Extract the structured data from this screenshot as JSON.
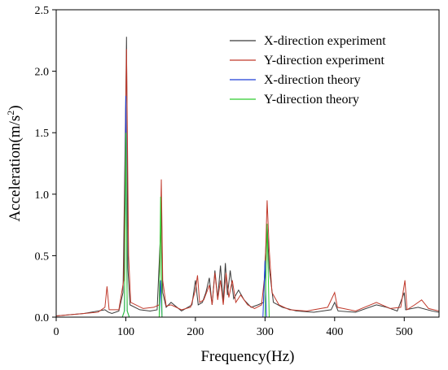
{
  "chart_data": {
    "type": "line",
    "title": "",
    "xlabel": "Frequency(Hz)",
    "ylabel_main": "Acceleration(m/s",
    "ylabel_sup": "2",
    "ylabel_close": ")",
    "xlim": [
      0,
      550
    ],
    "ylim": [
      0,
      2.5
    ],
    "xticks": [
      0,
      100,
      200,
      300,
      400,
      500
    ],
    "yticks": [
      0.0,
      0.5,
      1.0,
      1.5,
      2.0,
      2.5
    ],
    "xtick_labels": [
      "0",
      "100",
      "200",
      "300",
      "400",
      "500"
    ],
    "ytick_labels": [
      "0.0",
      "0.5",
      "1.0",
      "1.5",
      "2.0",
      "2.5"
    ],
    "grid": false,
    "legend_position": "top-right",
    "series": [
      {
        "name": "X-direction experiment",
        "color": "#3a3a3a",
        "points": [
          [
            0,
            0.01
          ],
          [
            20,
            0.02
          ],
          [
            40,
            0.03
          ],
          [
            60,
            0.05
          ],
          [
            70,
            0.06
          ],
          [
            75,
            0.04
          ],
          [
            80,
            0.03
          ],
          [
            90,
            0.05
          ],
          [
            96,
            0.2
          ],
          [
            100,
            1.8
          ],
          [
            101,
            2.28
          ],
          [
            103,
            0.4
          ],
          [
            106,
            0.1
          ],
          [
            120,
            0.06
          ],
          [
            135,
            0.05
          ],
          [
            145,
            0.06
          ],
          [
            150,
            0.7
          ],
          [
            151,
            0.95
          ],
          [
            153,
            0.2
          ],
          [
            158,
            0.08
          ],
          [
            165,
            0.12
          ],
          [
            180,
            0.05
          ],
          [
            195,
            0.1
          ],
          [
            200,
            0.3
          ],
          [
            204,
            0.1
          ],
          [
            210,
            0.12
          ],
          [
            215,
            0.2
          ],
          [
            220,
            0.32
          ],
          [
            224,
            0.1
          ],
          [
            228,
            0.38
          ],
          [
            232,
            0.15
          ],
          [
            236,
            0.42
          ],
          [
            240,
            0.12
          ],
          [
            243,
            0.44
          ],
          [
            246,
            0.18
          ],
          [
            250,
            0.38
          ],
          [
            255,
            0.15
          ],
          [
            262,
            0.22
          ],
          [
            270,
            0.14
          ],
          [
            280,
            0.08
          ],
          [
            290,
            0.1
          ],
          [
            298,
            0.12
          ],
          [
            300,
            0.45
          ],
          [
            303,
            0.75
          ],
          [
            306,
            0.4
          ],
          [
            312,
            0.12
          ],
          [
            325,
            0.08
          ],
          [
            345,
            0.05
          ],
          [
            370,
            0.04
          ],
          [
            395,
            0.06
          ],
          [
            400,
            0.12
          ],
          [
            405,
            0.05
          ],
          [
            430,
            0.04
          ],
          [
            460,
            0.1
          ],
          [
            475,
            0.08
          ],
          [
            490,
            0.05
          ],
          [
            500,
            0.2
          ],
          [
            502,
            0.06
          ],
          [
            520,
            0.08
          ],
          [
            540,
            0.05
          ],
          [
            550,
            0.04
          ]
        ]
      },
      {
        "name": "Y-direction experiment",
        "color": "#c0392b",
        "points": [
          [
            0,
            0.01
          ],
          [
            20,
            0.02
          ],
          [
            40,
            0.03
          ],
          [
            60,
            0.04
          ],
          [
            70,
            0.08
          ],
          [
            73,
            0.25
          ],
          [
            76,
            0.06
          ],
          [
            90,
            0.06
          ],
          [
            97,
            0.3
          ],
          [
            101,
            2.18
          ],
          [
            104,
            0.5
          ],
          [
            107,
            0.12
          ],
          [
            125,
            0.07
          ],
          [
            140,
            0.08
          ],
          [
            148,
            0.1
          ],
          [
            151,
            1.12
          ],
          [
            153,
            0.3
          ],
          [
            158,
            0.09
          ],
          [
            165,
            0.1
          ],
          [
            180,
            0.06
          ],
          [
            193,
            0.08
          ],
          [
            200,
            0.22
          ],
          [
            203,
            0.34
          ],
          [
            206,
            0.12
          ],
          [
            212,
            0.14
          ],
          [
            220,
            0.26
          ],
          [
            224,
            0.1
          ],
          [
            228,
            0.36
          ],
          [
            232,
            0.14
          ],
          [
            236,
            0.3
          ],
          [
            240,
            0.1
          ],
          [
            244,
            0.36
          ],
          [
            248,
            0.16
          ],
          [
            253,
            0.3
          ],
          [
            258,
            0.12
          ],
          [
            265,
            0.18
          ],
          [
            275,
            0.1
          ],
          [
            285,
            0.07
          ],
          [
            295,
            0.1
          ],
          [
            300,
            0.36
          ],
          [
            303,
            0.95
          ],
          [
            306,
            0.55
          ],
          [
            310,
            0.2
          ],
          [
            320,
            0.1
          ],
          [
            335,
            0.06
          ],
          [
            360,
            0.05
          ],
          [
            390,
            0.08
          ],
          [
            400,
            0.2
          ],
          [
            404,
            0.08
          ],
          [
            430,
            0.05
          ],
          [
            460,
            0.12
          ],
          [
            480,
            0.07
          ],
          [
            495,
            0.08
          ],
          [
            501,
            0.3
          ],
          [
            504,
            0.06
          ],
          [
            515,
            0.1
          ],
          [
            525,
            0.14
          ],
          [
            535,
            0.07
          ],
          [
            550,
            0.05
          ]
        ]
      },
      {
        "name": "X-direction theory",
        "color": "#1f3fd6",
        "points": [
          [
            0,
            0.0
          ],
          [
            95,
            0.0
          ],
          [
            98,
            0.05
          ],
          [
            100,
            1.8
          ],
          [
            102,
            0.05
          ],
          [
            105,
            0.0
          ],
          [
            148,
            0.0
          ],
          [
            150,
            0.3
          ],
          [
            152,
            0.0
          ],
          [
            297,
            0.0
          ],
          [
            300,
            0.46
          ],
          [
            302,
            0.0
          ],
          [
            550,
            0.0
          ]
        ]
      },
      {
        "name": "Y-direction theory",
        "color": "#2ecc2e",
        "points": [
          [
            0,
            0.0
          ],
          [
            95,
            0.0
          ],
          [
            98,
            0.05
          ],
          [
            100,
            1.5
          ],
          [
            102,
            0.05
          ],
          [
            105,
            0.0
          ],
          [
            148,
            0.0
          ],
          [
            150,
            0.98
          ],
          [
            152,
            0.0
          ],
          [
            300,
            0.0
          ],
          [
            303,
            0.76
          ],
          [
            306,
            0.0
          ],
          [
            550,
            0.0
          ]
        ]
      }
    ]
  }
}
